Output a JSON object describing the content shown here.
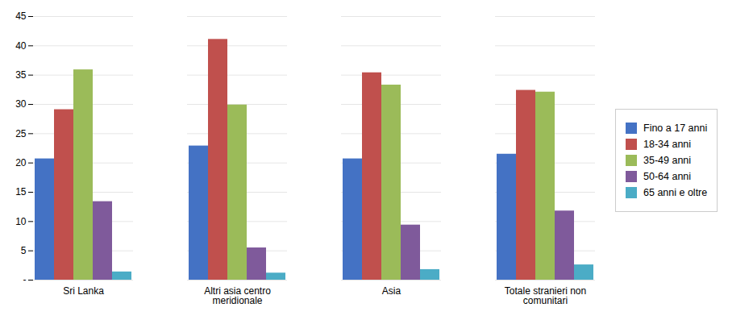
{
  "chart_data": {
    "type": "bar",
    "categories": [
      "Sri Lanka",
      "Altri asia centro\nmeridionale",
      "Asia",
      "Totale stranieri non\ncomunitari"
    ],
    "series": [
      {
        "name": "Fino a 17 anni",
        "color": "#4472c4",
        "values": [
          20.7,
          22.9,
          20.7,
          21.5
        ]
      },
      {
        "name": "18-34 anni",
        "color": "#c0504d",
        "values": [
          29.1,
          41.1,
          35.4,
          32.4
        ]
      },
      {
        "name": "35-49 anni",
        "color": "#9bbb59",
        "values": [
          35.9,
          29.9,
          33.3,
          32.1
        ]
      },
      {
        "name": "50-64 anni",
        "color": "#7f5a9b",
        "values": [
          13.4,
          5.5,
          9.4,
          11.8
        ]
      },
      {
        "name": "65 anni e oltre",
        "color": "#4bacc6",
        "values": [
          1.4,
          1.2,
          1.8,
          2.6
        ]
      }
    ],
    "ylim": [
      0,
      45
    ],
    "yticks": [
      {
        "value": 0,
        "label": "-"
      },
      5,
      10,
      15,
      20,
      25,
      30,
      35,
      40,
      45
    ],
    "grid": true,
    "legend": "right"
  }
}
